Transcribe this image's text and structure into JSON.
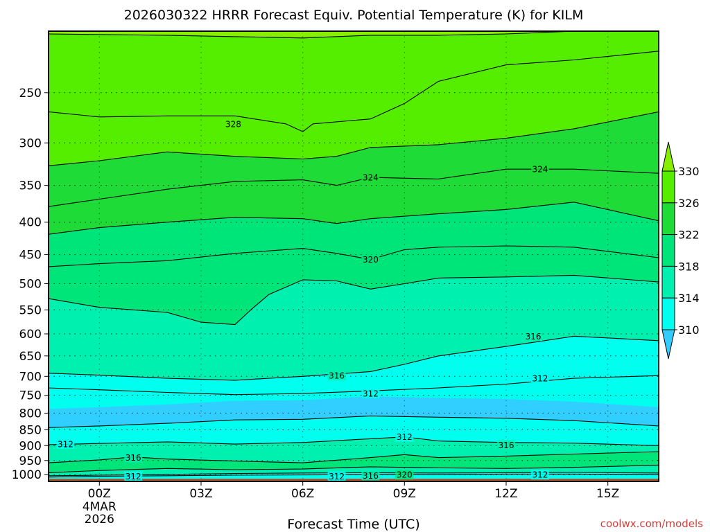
{
  "chart_data": {
    "type": "contour",
    "title": "2026030322 HRRR Forecast Equiv. Potential Temperature (K) for KILM",
    "xlabel": "Forecast Time (UTC)",
    "ylabel": "",
    "credit": "coolwx.com/models",
    "y_scale": "log",
    "y_inverted": true,
    "xlim": [
      -1.5,
      16.5
    ],
    "ylim": [
      1025,
      200
    ],
    "x_ticks": [
      {
        "value": 0,
        "label": "00Z",
        "extra": [
          "4MAR",
          "2026"
        ]
      },
      {
        "value": 3,
        "label": "03Z"
      },
      {
        "value": 6,
        "label": "06Z"
      },
      {
        "value": 9,
        "label": "09Z"
      },
      {
        "value": 12,
        "label": "12Z"
      },
      {
        "value": 15,
        "label": "15Z"
      }
    ],
    "y_ticks": [
      250,
      300,
      350,
      400,
      450,
      500,
      550,
      600,
      650,
      700,
      750,
      800,
      850,
      900,
      950,
      1000
    ],
    "grid": true,
    "colorbar": {
      "placement": "right",
      "ticks": [
        330,
        326,
        322,
        318,
        314,
        310
      ],
      "levels": [
        {
          "min": 306,
          "max": 310,
          "color": "#33ccff"
        },
        {
          "min": 310,
          "max": 314,
          "color": "#00ffee"
        },
        {
          "min": 314,
          "max": 318,
          "color": "#00f0b0"
        },
        {
          "min": 318,
          "max": 322,
          "color": "#00e57a"
        },
        {
          "min": 322,
          "max": 326,
          "color": "#1fdb37"
        },
        {
          "min": 326,
          "max": 330,
          "color": "#55ee00"
        },
        {
          "min": 330,
          "max": 334,
          "color": "#88ee00"
        }
      ]
    },
    "ground": {
      "pressure": 1015,
      "color": "#a85530"
    },
    "contours": [
      {
        "level": 312,
        "points": [
          [
            -1.5,
            1009
          ],
          [
            0,
            1006
          ],
          [
            2,
            1004
          ],
          [
            4,
            1002
          ],
          [
            6,
            1001
          ],
          [
            8,
            1000
          ],
          [
            10,
            1000
          ],
          [
            12,
            998
          ],
          [
            14,
            998
          ],
          [
            16.5,
            1000
          ]
        ]
      },
      {
        "level": 316,
        "points": [
          [
            -1.5,
            1004
          ],
          [
            0,
            1002
          ],
          [
            2,
            999
          ],
          [
            4,
            996
          ],
          [
            6,
            994
          ],
          [
            8,
            993
          ],
          [
            10,
            994
          ],
          [
            12,
            993
          ],
          [
            14,
            992
          ],
          [
            16.5,
            994
          ]
        ]
      },
      {
        "level": 320,
        "points": [
          [
            -1.5,
            993
          ],
          [
            0,
            985
          ],
          [
            2,
            978
          ],
          [
            4,
            982
          ],
          [
            6,
            980
          ],
          [
            8,
            972
          ],
          [
            9.5,
            975
          ],
          [
            12,
            978
          ],
          [
            14,
            974
          ],
          [
            16.5,
            966
          ]
        ]
      },
      {
        "level": 316,
        "points": [
          [
            -1.5,
            958
          ],
          [
            0,
            948
          ],
          [
            1,
            938
          ],
          [
            2,
            945
          ],
          [
            4,
            952
          ],
          [
            6,
            958
          ],
          [
            8,
            940
          ],
          [
            9,
            930
          ],
          [
            10,
            940
          ],
          [
            12,
            935
          ],
          [
            14,
            928
          ],
          [
            16.5,
            920
          ]
        ]
      },
      {
        "level": 312,
        "points": [
          [
            -1.5,
            897
          ],
          [
            0,
            893
          ],
          [
            2,
            888
          ],
          [
            4,
            895
          ],
          [
            6,
            890
          ],
          [
            8,
            878
          ],
          [
            9,
            872
          ],
          [
            10,
            885
          ],
          [
            12,
            890
          ],
          [
            14,
            892
          ],
          [
            16.5,
            900
          ]
        ]
      },
      {
        "level": 310,
        "points": [
          [
            -1.5,
            843
          ],
          [
            0,
            838
          ],
          [
            2,
            830
          ],
          [
            4,
            820
          ],
          [
            6,
            818
          ],
          [
            8,
            808
          ],
          [
            10,
            812
          ],
          [
            12,
            815
          ],
          [
            14,
            822
          ],
          [
            16.5,
            838
          ]
        ]
      },
      {
        "level": 312,
        "points": [
          [
            -1.5,
            730
          ],
          [
            0,
            735
          ],
          [
            2,
            742
          ],
          [
            4,
            748
          ],
          [
            6,
            745
          ],
          [
            8,
            738
          ],
          [
            10,
            730
          ],
          [
            12,
            720
          ],
          [
            14,
            705
          ],
          [
            16.5,
            698
          ]
        ]
      },
      {
        "level": 316,
        "points": [
          [
            -1.5,
            692
          ],
          [
            0,
            697
          ],
          [
            2,
            705
          ],
          [
            4,
            710
          ],
          [
            6,
            700
          ],
          [
            8,
            688
          ],
          [
            9,
            670
          ],
          [
            10,
            650
          ],
          [
            12,
            628
          ],
          [
            14,
            605
          ],
          [
            16.5,
            615
          ]
        ]
      },
      {
        "level": 318,
        "points": [
          [
            -1.5,
            528
          ],
          [
            0,
            545
          ],
          [
            2,
            555
          ],
          [
            3,
            575
          ],
          [
            4,
            580
          ],
          [
            4.5,
            548
          ],
          [
            5,
            520
          ],
          [
            6,
            493
          ],
          [
            7,
            495
          ],
          [
            8,
            510
          ],
          [
            9,
            500
          ],
          [
            10,
            490
          ],
          [
            12,
            488
          ],
          [
            14,
            485
          ],
          [
            16.5,
            497
          ]
        ]
      },
      {
        "level": 320,
        "points": [
          [
            -1.5,
            470
          ],
          [
            0,
            465
          ],
          [
            2,
            460
          ],
          [
            4,
            448
          ],
          [
            6,
            440
          ],
          [
            7,
            448
          ],
          [
            8,
            458
          ],
          [
            9,
            442
          ],
          [
            10,
            438
          ],
          [
            12,
            436
          ],
          [
            14,
            438
          ],
          [
            16.5,
            455
          ]
        ]
      },
      {
        "level": 322,
        "points": [
          [
            -1.5,
            418
          ],
          [
            0,
            408
          ],
          [
            2,
            400
          ],
          [
            4,
            393
          ],
          [
            6,
            395
          ],
          [
            7,
            402
          ],
          [
            8,
            395
          ],
          [
            10,
            388
          ],
          [
            12,
            382
          ],
          [
            14,
            372
          ],
          [
            16.5,
            398
          ]
        ]
      },
      {
        "level": 324,
        "points": [
          [
            -1.5,
            378
          ],
          [
            0,
            368
          ],
          [
            2,
            355
          ],
          [
            4,
            345
          ],
          [
            6,
            343
          ],
          [
            7,
            350
          ],
          [
            8,
            340
          ],
          [
            10,
            342
          ],
          [
            12,
            330
          ],
          [
            14,
            330
          ],
          [
            16.5,
            335
          ]
        ]
      },
      {
        "level": 326,
        "points": [
          [
            -1.5,
            326
          ],
          [
            0,
            320
          ],
          [
            2,
            310
          ],
          [
            4,
            315
          ],
          [
            6,
            318
          ],
          [
            7,
            315
          ],
          [
            8,
            305
          ],
          [
            10,
            302
          ],
          [
            12,
            295
          ],
          [
            14,
            285
          ],
          [
            16.5,
            268
          ]
        ]
      },
      {
        "level": 328,
        "points": [
          [
            -1.5,
            268
          ],
          [
            0,
            273
          ],
          [
            2,
            272
          ],
          [
            4,
            272
          ],
          [
            5.5,
            280
          ],
          [
            6,
            288
          ],
          [
            6.3,
            280
          ],
          [
            8,
            275
          ],
          [
            9,
            260
          ],
          [
            10,
            240
          ],
          [
            12,
            226
          ],
          [
            14,
            222
          ],
          [
            16.5,
            215
          ]
        ]
      },
      {
        "level": 330,
        "points": [
          [
            -1.5,
            202
          ],
          [
            2,
            203
          ],
          [
            4,
            204
          ],
          [
            6,
            205
          ],
          [
            8,
            203
          ],
          [
            10,
            203
          ],
          [
            12,
            202
          ],
          [
            14,
            200
          ],
          [
            16.5,
            198
          ]
        ]
      }
    ],
    "contour_labels": [
      {
        "text": "328",
        "x": 3.95,
        "y": 280
      },
      {
        "text": "324",
        "x": 8.0,
        "y": 340
      },
      {
        "text": "324",
        "x": 13.0,
        "y": 330
      },
      {
        "text": "320",
        "x": 8.0,
        "y": 458
      },
      {
        "text": "316",
        "x": 12.8,
        "y": 605
      },
      {
        "text": "316",
        "x": 7.0,
        "y": 698
      },
      {
        "text": "312",
        "x": 13.0,
        "y": 705
      },
      {
        "text": "312",
        "x": 8.0,
        "y": 745
      },
      {
        "text": "312",
        "x": 9.0,
        "y": 872
      },
      {
        "text": "312",
        "x": -1.0,
        "y": 895
      },
      {
        "text": "316",
        "x": 12.0,
        "y": 898
      },
      {
        "text": "316",
        "x": 1.0,
        "y": 940
      },
      {
        "text": "320",
        "x": 9.0,
        "y": 1000
      },
      {
        "text": "316",
        "x": 8.0,
        "y": 1003
      },
      {
        "text": "312",
        "x": 7.0,
        "y": 1006
      },
      {
        "text": "312",
        "x": 1.0,
        "y": 1006
      },
      {
        "text": "312",
        "x": 13.0,
        "y": 1000
      }
    ]
  }
}
